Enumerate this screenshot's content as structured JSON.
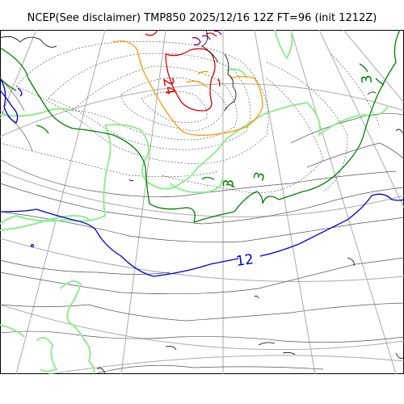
{
  "title": "NCEP(See disclaimer) TMP850 2025/12/16 12Z FT=96 (init 1212Z)",
  "contour_labels": [
    {
      "text": "24",
      "color": "#dd0000",
      "rotate": 80
    },
    {
      "text": "3",
      "color": "#008000",
      "rotate": -95
    },
    {
      "text": "3",
      "color": "#008000",
      "rotate": -85
    },
    {
      "text": "3",
      "color": "#008000",
      "rotate": -75
    },
    {
      "text": "12",
      "color": "#0000dd",
      "rotate": -8
    }
  ],
  "colors": {
    "coastline": "#000000",
    "gridlines": "#aaaaaa",
    "dashed_contour": "#444444",
    "contour_gray": "#555555",
    "contour_lightgreen": "#90ee90",
    "contour_green": "#008000",
    "contour_blue": "#0000dd",
    "contour_orange": "#ff9900",
    "contour_red": "#dd0000",
    "contour_purple": "#800080"
  }
}
